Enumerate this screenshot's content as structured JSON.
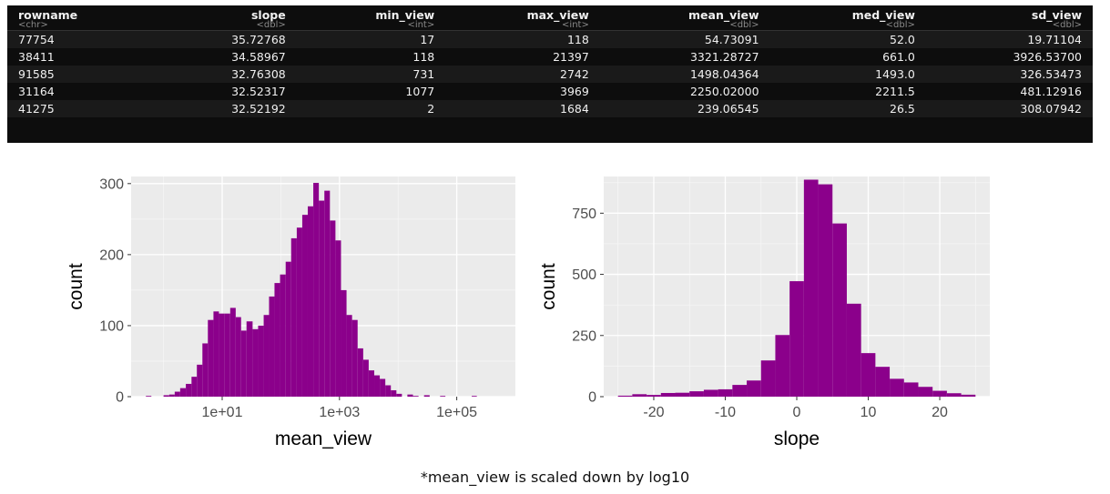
{
  "table": {
    "columns": [
      {
        "name": "rowname",
        "type": "<chr>",
        "align": "left"
      },
      {
        "name": "slope",
        "type": "<dbl>",
        "align": "right"
      },
      {
        "name": "min_view",
        "type": "<int>",
        "align": "right"
      },
      {
        "name": "max_view",
        "type": "<int>",
        "align": "right"
      },
      {
        "name": "mean_view",
        "type": "<dbl>",
        "align": "right"
      },
      {
        "name": "med_view",
        "type": "<dbl>",
        "align": "right"
      },
      {
        "name": "sd_view",
        "type": "<dbl>",
        "align": "right"
      }
    ],
    "rows": [
      [
        "77754",
        "35.72768",
        "17",
        "118",
        "54.73091",
        "52.0",
        "19.71104"
      ],
      [
        "38411",
        "34.58967",
        "118",
        "21397",
        "3321.28727",
        "661.0",
        "3926.53700"
      ],
      [
        "91585",
        "32.76308",
        "731",
        "2742",
        "1498.04364",
        "1493.0",
        "326.53473"
      ],
      [
        "31164",
        "32.52317",
        "1077",
        "3969",
        "2250.02000",
        "2211.5",
        "481.12916"
      ],
      [
        "41275",
        "32.52192",
        "2",
        "1684",
        "239.06545",
        "26.5",
        "308.07942"
      ]
    ]
  },
  "caption": "*mean_view is scaled down by log10",
  "chart_data": [
    {
      "type": "bar",
      "xlabel": "mean_view",
      "ylabel": "count",
      "x_scale": "log10",
      "xticks": [
        10,
        1000,
        100000
      ],
      "xtick_labels": [
        "1e+01",
        "1e+03",
        "1e+05"
      ],
      "yticks": [
        0,
        100,
        200,
        300
      ],
      "ylim": [
        0,
        310
      ],
      "xlim": [
        0.28,
        1000000
      ],
      "grid": true,
      "fill_color": "#8B008B",
      "bins": [
        {
          "x0": 0.5,
          "x1": 0.62,
          "count": 1
        },
        {
          "x0": 1.0,
          "x1": 1.25,
          "count": 2
        },
        {
          "x0": 1.25,
          "x1": 1.55,
          "count": 3
        },
        {
          "x0": 1.55,
          "x1": 1.92,
          "count": 7
        },
        {
          "x0": 1.92,
          "x1": 2.4,
          "count": 12
        },
        {
          "x0": 2.4,
          "x1": 3.0,
          "count": 18
        },
        {
          "x0": 3.0,
          "x1": 3.7,
          "count": 28
        },
        {
          "x0": 3.7,
          "x1": 4.6,
          "count": 45
        },
        {
          "x0": 4.6,
          "x1": 5.7,
          "count": 75
        },
        {
          "x0": 5.7,
          "x1": 7.1,
          "count": 108
        },
        {
          "x0": 7.1,
          "x1": 8.8,
          "count": 120
        },
        {
          "x0": 8.8,
          "x1": 11.0,
          "count": 117
        },
        {
          "x0": 11.0,
          "x1": 13.7,
          "count": 117
        },
        {
          "x0": 13.7,
          "x1": 17.0,
          "count": 125
        },
        {
          "x0": 17.0,
          "x1": 21.0,
          "count": 112
        },
        {
          "x0": 21.0,
          "x1": 26.0,
          "count": 93
        },
        {
          "x0": 26.0,
          "x1": 33.0,
          "count": 106
        },
        {
          "x0": 33.0,
          "x1": 41.0,
          "count": 95
        },
        {
          "x0": 41.0,
          "x1": 51.0,
          "count": 100
        },
        {
          "x0": 51.0,
          "x1": 63.0,
          "count": 115
        },
        {
          "x0": 63.0,
          "x1": 78.0,
          "count": 141
        },
        {
          "x0": 78.0,
          "x1": 97.0,
          "count": 160
        },
        {
          "x0": 97.0,
          "x1": 121.0,
          "count": 172
        },
        {
          "x0": 121.0,
          "x1": 150.0,
          "count": 190
        },
        {
          "x0": 150.0,
          "x1": 187.0,
          "count": 223
        },
        {
          "x0": 187.0,
          "x1": 232.0,
          "count": 238
        },
        {
          "x0": 232.0,
          "x1": 288.0,
          "count": 256
        },
        {
          "x0": 288.0,
          "x1": 358.0,
          "count": 268
        },
        {
          "x0": 358.0,
          "x1": 445.0,
          "count": 301
        },
        {
          "x0": 445.0,
          "x1": 553.0,
          "count": 276
        },
        {
          "x0": 553.0,
          "x1": 687.0,
          "count": 290
        },
        {
          "x0": 687.0,
          "x1": 854.0,
          "count": 248
        },
        {
          "x0": 854.0,
          "x1": 1062.0,
          "count": 220
        },
        {
          "x0": 1062.0,
          "x1": 1320.0,
          "count": 150
        },
        {
          "x0": 1320.0,
          "x1": 1640.0,
          "count": 115
        },
        {
          "x0": 1640.0,
          "x1": 2040.0,
          "count": 108
        },
        {
          "x0": 2040.0,
          "x1": 2540.0,
          "count": 68
        },
        {
          "x0": 2540.0,
          "x1": 3150.0,
          "count": 52
        },
        {
          "x0": 3150.0,
          "x1": 3920.0,
          "count": 37
        },
        {
          "x0": 3920.0,
          "x1": 4870.0,
          "count": 30
        },
        {
          "x0": 4870.0,
          "x1": 6050.0,
          "count": 25
        },
        {
          "x0": 6050.0,
          "x1": 7520.0,
          "count": 16
        },
        {
          "x0": 7520.0,
          "x1": 9350.0,
          "count": 9
        },
        {
          "x0": 9350.0,
          "x1": 11600.0,
          "count": 4
        },
        {
          "x0": 14400.0,
          "x1": 17900.0,
          "count": 3
        },
        {
          "x0": 17900.0,
          "x1": 22300.0,
          "count": 1
        },
        {
          "x0": 27700.0,
          "x1": 34500.0,
          "count": 2
        },
        {
          "x0": 52000.0,
          "x1": 64000.0,
          "count": 1
        },
        {
          "x0": 180000.0,
          "x1": 220000.0,
          "count": 1
        }
      ]
    },
    {
      "type": "bar",
      "xlabel": "slope",
      "ylabel": "count",
      "xticks": [
        -20,
        -10,
        0,
        10,
        20
      ],
      "yticks": [
        0,
        250,
        500,
        750
      ],
      "ylim": [
        0,
        900
      ],
      "xlim": [
        -27,
        27
      ],
      "grid": true,
      "fill_color": "#8B008B",
      "bins": [
        {
          "x0": -25.0,
          "x1": -23.0,
          "count": 4
        },
        {
          "x0": -23.0,
          "x1": -21.0,
          "count": 10
        },
        {
          "x0": -21.0,
          "x1": -19.0,
          "count": 7
        },
        {
          "x0": -19.0,
          "x1": -17.0,
          "count": 15
        },
        {
          "x0": -17.0,
          "x1": -15.0,
          "count": 16
        },
        {
          "x0": -15.0,
          "x1": -13.0,
          "count": 22
        },
        {
          "x0": -13.0,
          "x1": -11.0,
          "count": 28
        },
        {
          "x0": -11.0,
          "x1": -9.0,
          "count": 30
        },
        {
          "x0": -9.0,
          "x1": -7.0,
          "count": 48
        },
        {
          "x0": -7.0,
          "x1": -5.0,
          "count": 66
        },
        {
          "x0": -5.0,
          "x1": -3.0,
          "count": 148
        },
        {
          "x0": -3.0,
          "x1": -1.0,
          "count": 252
        },
        {
          "x0": -1.0,
          "x1": 1.0,
          "count": 472
        },
        {
          "x0": 1.0,
          "x1": 3.0,
          "count": 887
        },
        {
          "x0": 3.0,
          "x1": 5.0,
          "count": 868
        },
        {
          "x0": 5.0,
          "x1": 7.0,
          "count": 708
        },
        {
          "x0": 7.0,
          "x1": 9.0,
          "count": 380
        },
        {
          "x0": 9.0,
          "x1": 11.0,
          "count": 178
        },
        {
          "x0": 11.0,
          "x1": 13.0,
          "count": 122
        },
        {
          "x0": 13.0,
          "x1": 15.0,
          "count": 73
        },
        {
          "x0": 15.0,
          "x1": 17.0,
          "count": 58
        },
        {
          "x0": 17.0,
          "x1": 19.0,
          "count": 40
        },
        {
          "x0": 19.0,
          "x1": 21.0,
          "count": 24
        },
        {
          "x0": 21.0,
          "x1": 23.0,
          "count": 14
        },
        {
          "x0": 23.0,
          "x1": 25.0,
          "count": 8
        }
      ]
    }
  ]
}
